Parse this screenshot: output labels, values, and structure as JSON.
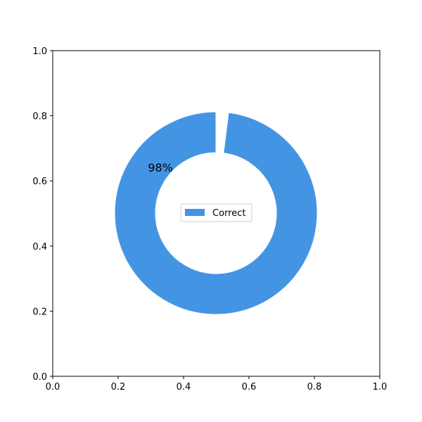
{
  "chart_data": {
    "type": "pie",
    "donut": true,
    "title": "",
    "xlabel": "",
    "ylabel": "",
    "xlim": [
      0,
      1
    ],
    "ylim": [
      0,
      1
    ],
    "xticks": [
      "0.0",
      "0.2",
      "0.4",
      "0.6",
      "0.8",
      "1.0"
    ],
    "yticks": [
      "0.0",
      "0.2",
      "0.4",
      "0.6",
      "0.8",
      "1.0"
    ],
    "grid": false,
    "legend_position": "center",
    "slices": [
      {
        "name": "Correct",
        "value": 98,
        "label": "98%",
        "color": "#4494e4",
        "exploded": false
      },
      {
        "name": "",
        "value": 2,
        "label": "",
        "color": "#ffffff",
        "exploded": true
      }
    ],
    "legend": [
      {
        "label": "Correct",
        "color": "#4494e4"
      }
    ]
  }
}
